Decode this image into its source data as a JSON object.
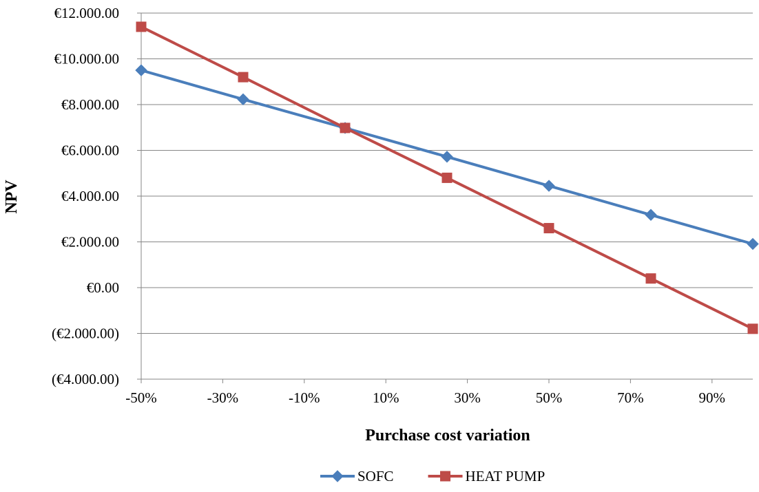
{
  "chart_data": {
    "type": "line",
    "title": "",
    "xlabel": "Purchase  cost variation",
    "ylabel": "NPV",
    "x": [
      -50,
      -25,
      0,
      25,
      50,
      75,
      100
    ],
    "xlim": [
      -50,
      100
    ],
    "x_tick_values": [
      -50,
      -30,
      -10,
      10,
      30,
      50,
      70,
      90
    ],
    "x_tick_labels": [
      "-50%",
      "-30%",
      "-10%",
      "10%",
      "30%",
      "50%",
      "70%",
      "90%"
    ],
    "ylim": [
      -4000,
      12000
    ],
    "y_tick_values": [
      12000,
      10000,
      8000,
      6000,
      4000,
      2000,
      0,
      -2000,
      -4000
    ],
    "y_tick_labels": [
      "€12.000.00",
      "€10.000.00",
      "€8.000.00",
      "€6.000.00",
      "€4.000.00",
      "€2.000.00",
      "€0.00",
      "(€2.000.00)",
      "(€4.000.00)"
    ],
    "negative_label_color": "#ff0000",
    "grid": true,
    "legend_position": "bottom",
    "series": [
      {
        "name": "SOFC",
        "color": "#4a7ebb",
        "marker": "diamond",
        "values": [
          9500,
          8230,
          6980,
          5720,
          4450,
          3180,
          1910
        ]
      },
      {
        "name": "HEAT PUMP",
        "color": "#be4b48",
        "marker": "square",
        "values": [
          11400,
          9200,
          6980,
          4800,
          2600,
          400,
          -1800
        ]
      }
    ]
  }
}
